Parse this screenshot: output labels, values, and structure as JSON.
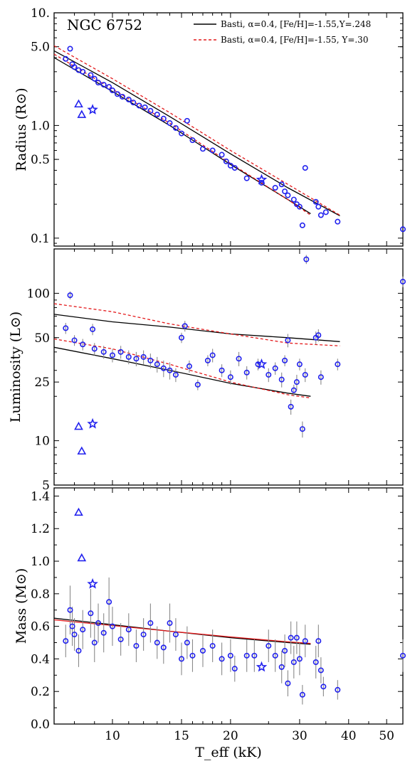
{
  "chart_data": [
    {
      "type": "scatter",
      "panel": "radius",
      "title": "NGC 6752",
      "ylabel": "Radius (R⊙)",
      "yscale": "log",
      "ylim": [
        0.085,
        10.0
      ],
      "xscale": "log",
      "xlim": [
        7.1,
        55.0
      ],
      "yticks": [
        {
          "v": 10.0,
          "label": "10."
        },
        {
          "v": 5.0,
          "label": "5.0"
        },
        {
          "v": 1.0,
          "label": "1.0"
        },
        {
          "v": 0.5,
          "label": "0.5"
        },
        {
          "v": 0.1,
          "label": "0.1"
        }
      ],
      "legend": [
        {
          "label": "Basti, α=0.4, [Fe/H]=-1.55,Y=.248",
          "color": "#000000",
          "dash": "solid"
        },
        {
          "label": "Basti, α=0.4, [Fe/H]=-1.55, Y=.30",
          "color": "#e41a1c",
          "dash": "dashed"
        }
      ],
      "lines": [
        {
          "name": "Y=.248 upper",
          "color": "#000000",
          "dash": "solid",
          "x": [
            7.1,
            10,
            14,
            20,
            28,
            38
          ],
          "y": [
            4.6,
            2.4,
            1.2,
            0.56,
            0.28,
            0.158
          ]
        },
        {
          "name": "Y=.248 lower",
          "color": "#000000",
          "dash": "solid",
          "x": [
            7.1,
            10,
            14,
            20,
            28,
            32
          ],
          "y": [
            4.0,
            2.0,
            1.0,
            0.45,
            0.22,
            0.165
          ]
        },
        {
          "name": "Y=.30 upper",
          "color": "#e41a1c",
          "dash": "dashed",
          "x": [
            7.1,
            10,
            14,
            20,
            28,
            38
          ],
          "y": [
            5.1,
            2.6,
            1.3,
            0.6,
            0.3,
            0.16
          ]
        },
        {
          "name": "Y=.30 lower",
          "color": "#e41a1c",
          "dash": "dashed",
          "x": [
            7.1,
            10,
            14,
            20,
            28,
            32
          ],
          "y": [
            4.3,
            2.1,
            1.05,
            0.46,
            0.22,
            0.16
          ]
        }
      ],
      "points": [
        {
          "x": 7.8,
          "y": 4.8
        },
        {
          "x": 7.6,
          "y": 3.9
        },
        {
          "x": 7.9,
          "y": 3.5
        },
        {
          "x": 8.0,
          "y": 3.3
        },
        {
          "x": 8.2,
          "y": 3.1
        },
        {
          "x": 8.4,
          "y": 3.0
        },
        {
          "x": 8.8,
          "y": 2.8
        },
        {
          "x": 9.0,
          "y": 2.6
        },
        {
          "x": 9.2,
          "y": 2.4
        },
        {
          "x": 9.5,
          "y": 2.3
        },
        {
          "x": 9.8,
          "y": 2.2
        },
        {
          "x": 10.0,
          "y": 2.05
        },
        {
          "x": 10.3,
          "y": 1.9
        },
        {
          "x": 10.6,
          "y": 1.8
        },
        {
          "x": 11.0,
          "y": 1.7
        },
        {
          "x": 11.3,
          "y": 1.6
        },
        {
          "x": 11.7,
          "y": 1.5
        },
        {
          "x": 12.1,
          "y": 1.45
        },
        {
          "x": 12.5,
          "y": 1.35
        },
        {
          "x": 13.0,
          "y": 1.25
        },
        {
          "x": 13.5,
          "y": 1.15
        },
        {
          "x": 14.0,
          "y": 1.05
        },
        {
          "x": 14.5,
          "y": 0.95
        },
        {
          "x": 15.0,
          "y": 0.85
        },
        {
          "x": 15.5,
          "y": 1.1
        },
        {
          "x": 16.0,
          "y": 0.74
        },
        {
          "x": 17.0,
          "y": 0.62
        },
        {
          "x": 18.0,
          "y": 0.6
        },
        {
          "x": 19.0,
          "y": 0.55
        },
        {
          "x": 19.5,
          "y": 0.48
        },
        {
          "x": 20.0,
          "y": 0.44
        },
        {
          "x": 20.5,
          "y": 0.42
        },
        {
          "x": 22.0,
          "y": 0.34
        },
        {
          "x": 24.0,
          "y": 0.31
        },
        {
          "x": 26.0,
          "y": 0.28
        },
        {
          "x": 27.0,
          "y": 0.3
        },
        {
          "x": 27.5,
          "y": 0.26
        },
        {
          "x": 28.0,
          "y": 0.24
        },
        {
          "x": 29.0,
          "y": 0.22
        },
        {
          "x": 29.5,
          "y": 0.2
        },
        {
          "x": 30.0,
          "y": 0.19
        },
        {
          "x": 30.5,
          "y": 0.13
        },
        {
          "x": 31.0,
          "y": 0.42
        },
        {
          "x": 33.0,
          "y": 0.21
        },
        {
          "x": 33.5,
          "y": 0.19
        },
        {
          "x": 34.0,
          "y": 0.16
        },
        {
          "x": 35.0,
          "y": 0.17
        },
        {
          "x": 37.5,
          "y": 0.14
        },
        {
          "x": 55.0,
          "y": 0.12
        }
      ],
      "triangles": [
        {
          "x": 8.2,
          "y": 1.55
        },
        {
          "x": 8.35,
          "y": 1.25
        }
      ],
      "stars": [
        {
          "x": 8.9,
          "y": 1.38
        },
        {
          "x": 24.0,
          "y": 0.33
        }
      ]
    },
    {
      "type": "scatter",
      "panel": "luminosity",
      "ylabel": "Luminosity (L⊙)",
      "yscale": "log",
      "ylim": [
        5.0,
        200.0
      ],
      "xscale": "log",
      "xlim": [
        7.1,
        55.0
      ],
      "yticks": [
        {
          "v": 100,
          "label": "100"
        },
        {
          "v": 50,
          "label": "50"
        },
        {
          "v": 25,
          "label": "25"
        },
        {
          "v": 10,
          "label": "10"
        },
        {
          "v": 5,
          "label": "5"
        }
      ],
      "lines": [
        {
          "name": "Y=.248 upper",
          "color": "#000000",
          "dash": "solid",
          "x": [
            7.1,
            10,
            14,
            20,
            28,
            38
          ],
          "y": [
            72,
            64,
            59,
            53,
            50,
            47
          ]
        },
        {
          "name": "Y=.248 lower",
          "color": "#000000",
          "dash": "solid",
          "x": [
            7.1,
            10,
            14,
            20,
            28,
            32
          ],
          "y": [
            43,
            36,
            30,
            24.5,
            21,
            20
          ]
        },
        {
          "name": "Y=.30 upper",
          "color": "#e41a1c",
          "dash": "dashed",
          "x": [
            7.1,
            10,
            14,
            20,
            28,
            38
          ],
          "y": [
            85,
            75,
            62,
            53,
            46,
            44
          ]
        },
        {
          "name": "Y=.30 lower",
          "color": "#e41a1c",
          "dash": "dashed",
          "x": [
            7.1,
            10,
            14,
            20,
            28,
            32
          ],
          "y": [
            49,
            42,
            33,
            25,
            20.5,
            19.5
          ]
        }
      ],
      "points": [
        {
          "x": 7.8,
          "y": 97,
          "e": 6
        },
        {
          "x": 7.6,
          "y": 58,
          "e": 5
        },
        {
          "x": 8.9,
          "y": 57,
          "e": 5
        },
        {
          "x": 8.0,
          "y": 48,
          "e": 4
        },
        {
          "x": 8.4,
          "y": 45,
          "e": 4
        },
        {
          "x": 9.0,
          "y": 42,
          "e": 4
        },
        {
          "x": 9.5,
          "y": 40,
          "e": 4
        },
        {
          "x": 10.0,
          "y": 38,
          "e": 4
        },
        {
          "x": 10.5,
          "y": 40,
          "e": 4
        },
        {
          "x": 11.0,
          "y": 37,
          "e": 4
        },
        {
          "x": 11.5,
          "y": 36,
          "e": 4
        },
        {
          "x": 12.0,
          "y": 37,
          "e": 4
        },
        {
          "x": 12.5,
          "y": 35,
          "e": 4
        },
        {
          "x": 13.0,
          "y": 33,
          "e": 4
        },
        {
          "x": 13.5,
          "y": 31,
          "e": 4
        },
        {
          "x": 14.0,
          "y": 30,
          "e": 4
        },
        {
          "x": 14.5,
          "y": 28,
          "e": 3
        },
        {
          "x": 15.0,
          "y": 50,
          "e": 4
        },
        {
          "x": 15.3,
          "y": 60,
          "e": 5
        },
        {
          "x": 15.7,
          "y": 32,
          "e": 3
        },
        {
          "x": 16.5,
          "y": 24,
          "e": 2
        },
        {
          "x": 17.5,
          "y": 35,
          "e": 3
        },
        {
          "x": 18.0,
          "y": 38,
          "e": 4
        },
        {
          "x": 19.0,
          "y": 30,
          "e": 3
        },
        {
          "x": 20.0,
          "y": 27,
          "e": 3
        },
        {
          "x": 21.0,
          "y": 36,
          "e": 4
        },
        {
          "x": 22.0,
          "y": 29,
          "e": 3
        },
        {
          "x": 23.5,
          "y": 33,
          "e": 3
        },
        {
          "x": 25.0,
          "y": 28,
          "e": 3
        },
        {
          "x": 26.0,
          "y": 31,
          "e": 3
        },
        {
          "x": 27.0,
          "y": 26,
          "e": 3
        },
        {
          "x": 27.5,
          "y": 35,
          "e": 3
        },
        {
          "x": 28.0,
          "y": 48,
          "e": 5
        },
        {
          "x": 28.5,
          "y": 17,
          "e": 2
        },
        {
          "x": 29.0,
          "y": 22,
          "e": 2
        },
        {
          "x": 29.5,
          "y": 25,
          "e": 3
        },
        {
          "x": 30.0,
          "y": 33,
          "e": 3
        },
        {
          "x": 30.5,
          "y": 12,
          "e": 1.5
        },
        {
          "x": 31.0,
          "y": 28,
          "e": 3
        },
        {
          "x": 31.2,
          "y": 170,
          "e": 12
        },
        {
          "x": 33.0,
          "y": 50,
          "e": 5
        },
        {
          "x": 33.5,
          "y": 52,
          "e": 5
        },
        {
          "x": 34.0,
          "y": 27,
          "e": 3
        },
        {
          "x": 37.5,
          "y": 33,
          "e": 3
        },
        {
          "x": 55.0,
          "y": 120,
          "e": 10
        }
      ],
      "triangles": [
        {
          "x": 8.2,
          "y": 12.5
        },
        {
          "x": 8.35,
          "y": 8.5
        }
      ],
      "stars": [
        {
          "x": 8.9,
          "y": 13.0
        },
        {
          "x": 24.0,
          "y": 33.0
        }
      ]
    },
    {
      "type": "scatter",
      "panel": "mass",
      "xlabel": "T_eff (kK)",
      "ylabel": "Mass (M⊙)",
      "yscale": "linear",
      "ylim": [
        0.0,
        1.45
      ],
      "xscale": "log",
      "xlim": [
        7.1,
        55.0
      ],
      "yticks": [
        {
          "v": 0.0,
          "label": "0.0"
        },
        {
          "v": 0.2,
          "label": "0.2"
        },
        {
          "v": 0.4,
          "label": "0.4"
        },
        {
          "v": 0.6,
          "label": "0.6"
        },
        {
          "v": 0.8,
          "label": "0.8"
        },
        {
          "v": 1.0,
          "label": "1.0"
        },
        {
          "v": 1.2,
          "label": "1.2"
        },
        {
          "v": 1.4,
          "label": "1.4"
        }
      ],
      "xticks": [
        {
          "v": 10,
          "label": "10"
        },
        {
          "v": 15,
          "label": "15"
        },
        {
          "v": 20,
          "label": "20"
        },
        {
          "v": 30,
          "label": "30"
        },
        {
          "v": 40,
          "label": "40"
        },
        {
          "v": 50,
          "label": "50"
        }
      ],
      "lines": [
        {
          "name": "Y=.248",
          "color": "#000000",
          "dash": "solid",
          "x": [
            7.1,
            10,
            14,
            20,
            28,
            32
          ],
          "y": [
            0.65,
            0.61,
            0.57,
            0.53,
            0.5,
            0.49
          ]
        },
        {
          "name": "Y=.30",
          "color": "#e41a1c",
          "dash": "solid",
          "x": [
            7.1,
            10,
            14,
            20,
            28,
            32
          ],
          "y": [
            0.64,
            0.605,
            0.57,
            0.535,
            0.505,
            0.495
          ]
        }
      ],
      "points": [
        {
          "x": 7.6,
          "y": 0.51,
          "e": 0.1
        },
        {
          "x": 7.8,
          "y": 0.7,
          "e": 0.15
        },
        {
          "x": 7.9,
          "y": 0.6,
          "e": 0.12
        },
        {
          "x": 8.0,
          "y": 0.55,
          "e": 0.1
        },
        {
          "x": 8.2,
          "y": 0.45,
          "e": 0.1
        },
        {
          "x": 8.4,
          "y": 0.58,
          "e": 0.12
        },
        {
          "x": 8.8,
          "y": 0.68,
          "e": 0.15
        },
        {
          "x": 9.0,
          "y": 0.5,
          "e": 0.12
        },
        {
          "x": 9.2,
          "y": 0.62,
          "e": 0.12
        },
        {
          "x": 9.5,
          "y": 0.56,
          "e": 0.12
        },
        {
          "x": 9.8,
          "y": 0.75,
          "e": 0.15
        },
        {
          "x": 10.0,
          "y": 0.6,
          "e": 0.12
        },
        {
          "x": 10.5,
          "y": 0.52,
          "e": 0.1
        },
        {
          "x": 11.0,
          "y": 0.58,
          "e": 0.1
        },
        {
          "x": 11.5,
          "y": 0.48,
          "e": 0.1
        },
        {
          "x": 12.0,
          "y": 0.55,
          "e": 0.1
        },
        {
          "x": 12.5,
          "y": 0.62,
          "e": 0.12
        },
        {
          "x": 13.0,
          "y": 0.5,
          "e": 0.1
        },
        {
          "x": 13.5,
          "y": 0.47,
          "e": 0.1
        },
        {
          "x": 14.0,
          "y": 0.62,
          "e": 0.12
        },
        {
          "x": 14.5,
          "y": 0.55,
          "e": 0.1
        },
        {
          "x": 15.0,
          "y": 0.4,
          "e": 0.1
        },
        {
          "x": 15.5,
          "y": 0.5,
          "e": 0.1
        },
        {
          "x": 16.0,
          "y": 0.42,
          "e": 0.1
        },
        {
          "x": 17.0,
          "y": 0.45,
          "e": 0.1
        },
        {
          "x": 18.0,
          "y": 0.48,
          "e": 0.1
        },
        {
          "x": 19.0,
          "y": 0.4,
          "e": 0.1
        },
        {
          "x": 20.0,
          "y": 0.42,
          "e": 0.1
        },
        {
          "x": 20.5,
          "y": 0.34,
          "e": 0.08
        },
        {
          "x": 22.0,
          "y": 0.42,
          "e": 0.1
        },
        {
          "x": 23.0,
          "y": 0.42,
          "e": 0.1
        },
        {
          "x": 25.0,
          "y": 0.48,
          "e": 0.1
        },
        {
          "x": 26.0,
          "y": 0.42,
          "e": 0.1
        },
        {
          "x": 27.0,
          "y": 0.35,
          "e": 0.1
        },
        {
          "x": 27.5,
          "y": 0.45,
          "e": 0.1
        },
        {
          "x": 28.0,
          "y": 0.25,
          "e": 0.08
        },
        {
          "x": 28.5,
          "y": 0.53,
          "e": 0.1
        },
        {
          "x": 29.0,
          "y": 0.38,
          "e": 0.1
        },
        {
          "x": 29.5,
          "y": 0.53,
          "e": 0.1
        },
        {
          "x": 30.0,
          "y": 0.4,
          "e": 0.1
        },
        {
          "x": 30.5,
          "y": 0.18,
          "e": 0.06
        },
        {
          "x": 31.0,
          "y": 0.51,
          "e": 0.1
        },
        {
          "x": 33.0,
          "y": 0.38,
          "e": 0.1
        },
        {
          "x": 33.5,
          "y": 0.51,
          "e": 0.1
        },
        {
          "x": 34.0,
          "y": 0.33,
          "e": 0.08
        },
        {
          "x": 34.5,
          "y": 0.23,
          "e": 0.06
        },
        {
          "x": 37.5,
          "y": 0.21,
          "e": 0.06
        },
        {
          "x": 55.0,
          "y": 0.42,
          "e": 0.1
        }
      ],
      "triangles": [
        {
          "x": 8.2,
          "y": 1.3
        },
        {
          "x": 8.35,
          "y": 1.02
        }
      ],
      "stars": [
        {
          "x": 8.9,
          "y": 0.86
        },
        {
          "x": 24.0,
          "y": 0.35
        }
      ]
    }
  ]
}
